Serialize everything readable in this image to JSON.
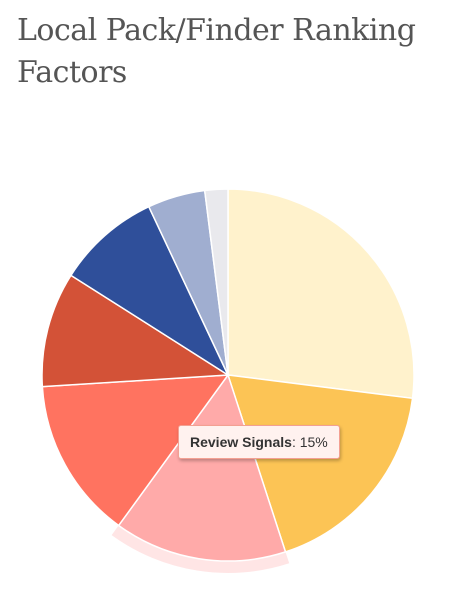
{
  "title": "Local Pack/Finder Ranking Factors",
  "chart_data": {
    "type": "pie",
    "slices": [
      {
        "value": 27,
        "color": "#fff2cc"
      },
      {
        "value": 18,
        "color": "#fcc455"
      },
      {
        "value": 15,
        "color": "#ffaaa9"
      },
      {
        "value": 14,
        "color": "#ff7360"
      },
      {
        "value": 10,
        "color": "#d35237"
      },
      {
        "value": 9,
        "color": "#2f4f9a"
      },
      {
        "value": 5,
        "color": "#a0aed0"
      },
      {
        "value": 2,
        "color": "#e9e9ed"
      }
    ],
    "hovered_index": 2,
    "tooltip": {
      "label": "Review Signals",
      "separator": ": ",
      "value_text": "15%"
    }
  }
}
